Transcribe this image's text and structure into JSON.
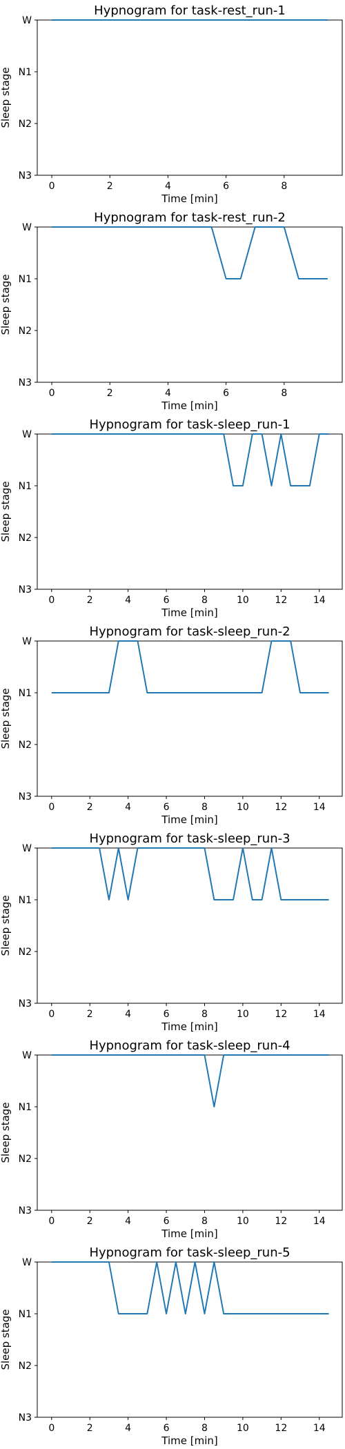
{
  "chart_data": [
    {
      "type": "line",
      "title": "Hypnogram for task-rest_run-1",
      "xlabel": "Time [min]",
      "ylabel": "Sleep stage",
      "categories_y": [
        "W",
        "N1",
        "N2",
        "N3"
      ],
      "xlim": [
        -0.5,
        10
      ],
      "xticks": [
        0,
        2,
        4,
        6,
        8
      ],
      "x": [
        0,
        9.5
      ],
      "y": [
        "W",
        "W"
      ]
    },
    {
      "type": "line",
      "title": "Hypnogram for task-rest_run-2",
      "xlabel": "Time [min]",
      "ylabel": "Sleep stage",
      "categories_y": [
        "W",
        "N1",
        "N2",
        "N3"
      ],
      "xlim": [
        -0.5,
        10
      ],
      "xticks": [
        0,
        2,
        4,
        6,
        8
      ],
      "x": [
        0,
        5.5,
        6,
        6.5,
        7,
        8,
        8.5,
        9.5
      ],
      "y": [
        "W",
        "W",
        "N1",
        "N1",
        "W",
        "W",
        "N1",
        "N1"
      ]
    },
    {
      "type": "line",
      "title": "Hypnogram for task-sleep_run-1",
      "xlabel": "Time [min]",
      "ylabel": "Sleep stage",
      "categories_y": [
        "W",
        "N1",
        "N2",
        "N3"
      ],
      "xlim": [
        -0.75,
        15.2
      ],
      "xticks": [
        0,
        2,
        4,
        6,
        8,
        10,
        12,
        14
      ],
      "x": [
        0,
        9,
        9.5,
        10,
        10.5,
        11,
        11.5,
        12,
        12.5,
        13.5,
        14,
        14.5
      ],
      "y": [
        "W",
        "W",
        "N1",
        "N1",
        "W",
        "W",
        "N1",
        "W",
        "N1",
        "N1",
        "W",
        "W"
      ]
    },
    {
      "type": "line",
      "title": "Hypnogram for task-sleep_run-2",
      "xlabel": "Time [min]",
      "ylabel": "Sleep stage",
      "categories_y": [
        "W",
        "N1",
        "N2",
        "N3"
      ],
      "xlim": [
        -0.75,
        15.2
      ],
      "xticks": [
        0,
        2,
        4,
        6,
        8,
        10,
        12,
        14
      ],
      "x": [
        0,
        3,
        3.5,
        4.5,
        5,
        11,
        11.5,
        12.5,
        13,
        14.5
      ],
      "y": [
        "N1",
        "N1",
        "W",
        "W",
        "N1",
        "N1",
        "W",
        "W",
        "N1",
        "N1"
      ]
    },
    {
      "type": "line",
      "title": "Hypnogram for task-sleep_run-3",
      "xlabel": "Time [min]",
      "ylabel": "Sleep stage",
      "categories_y": [
        "W",
        "N1",
        "N2",
        "N3"
      ],
      "xlim": [
        -0.75,
        15.2
      ],
      "xticks": [
        0,
        2,
        4,
        6,
        8,
        10,
        12,
        14
      ],
      "x": [
        0,
        2.5,
        3,
        3.5,
        4,
        4.5,
        8,
        8.5,
        9.5,
        10,
        10.5,
        11,
        11.5,
        12,
        14.5
      ],
      "y": [
        "W",
        "W",
        "N1",
        "W",
        "N1",
        "W",
        "W",
        "N1",
        "N1",
        "W",
        "N1",
        "N1",
        "W",
        "N1",
        "N1"
      ]
    },
    {
      "type": "line",
      "title": "Hypnogram for task-sleep_run-4",
      "xlabel": "Time [min]",
      "ylabel": "Sleep stage",
      "categories_y": [
        "W",
        "N1",
        "N2",
        "N3"
      ],
      "xlim": [
        -0.75,
        15.2
      ],
      "xticks": [
        0,
        2,
        4,
        6,
        8,
        10,
        12,
        14
      ],
      "x": [
        0,
        8,
        8.5,
        9,
        14.5
      ],
      "y": [
        "W",
        "W",
        "N1",
        "W",
        "W"
      ]
    },
    {
      "type": "line",
      "title": "Hypnogram for task-sleep_run-5",
      "xlabel": "Time [min]",
      "ylabel": "Sleep stage",
      "categories_y": [
        "W",
        "N1",
        "N2",
        "N3"
      ],
      "xlim": [
        -0.75,
        15.2
      ],
      "xticks": [
        0,
        2,
        4,
        6,
        8,
        10,
        12,
        14
      ],
      "x": [
        0,
        3,
        3.5,
        5,
        5.5,
        6,
        6.5,
        7,
        7.5,
        8,
        8.5,
        9,
        14.5
      ],
      "y": [
        "W",
        "W",
        "N1",
        "N1",
        "W",
        "N1",
        "W",
        "N1",
        "W",
        "N1",
        "W",
        "N1",
        "N1"
      ]
    }
  ],
  "style": {
    "line_color": "#1f77b4"
  }
}
